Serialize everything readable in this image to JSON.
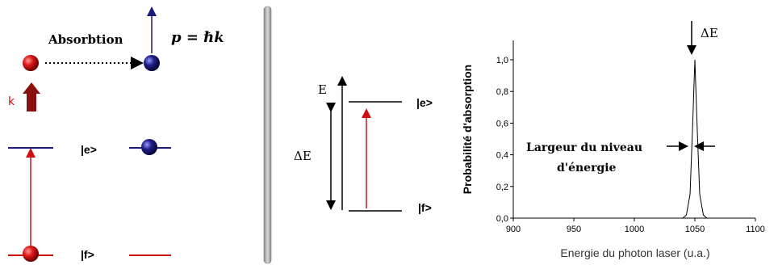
{
  "panel_left": {
    "absorption_label": "Absorbtion",
    "momentum_formula": "p = ℏk",
    "k_label": "k",
    "excited_label": "|e>",
    "ground_label": "|f>",
    "colors": {
      "red": "#d01010",
      "blue": "#1a1a7a"
    }
  },
  "panel_middle": {
    "energy_label": "E",
    "delta_e_label": "ΔE",
    "excited_label": "|e>",
    "ground_label": "|f>"
  },
  "chart_data": {
    "type": "line",
    "xlabel": "Energie du photon laser (u.a.)",
    "ylabel": "Probabilité d'absorption",
    "xlim": [
      900,
      1100
    ],
    "ylim": [
      0,
      1.0
    ],
    "x_ticks": [
      "900",
      "950",
      "1000",
      "1050",
      "1100"
    ],
    "y_ticks": [
      "0,0",
      "0,2",
      "0,4",
      "0,6",
      "0,8",
      "1,0"
    ],
    "grid": false,
    "series": [
      {
        "x": [
          900,
          1040,
          1043,
          1046,
          1048,
          1050,
          1052,
          1054,
          1057,
          1060,
          1100
        ],
        "y": [
          0,
          0,
          0.02,
          0.15,
          0.55,
          1.0,
          0.55,
          0.15,
          0.02,
          0,
          0
        ]
      }
    ],
    "annotations": {
      "peak_label": "ΔE",
      "width_label_line1": "Largeur du niveau",
      "width_label_line2": "d'énergie"
    }
  }
}
